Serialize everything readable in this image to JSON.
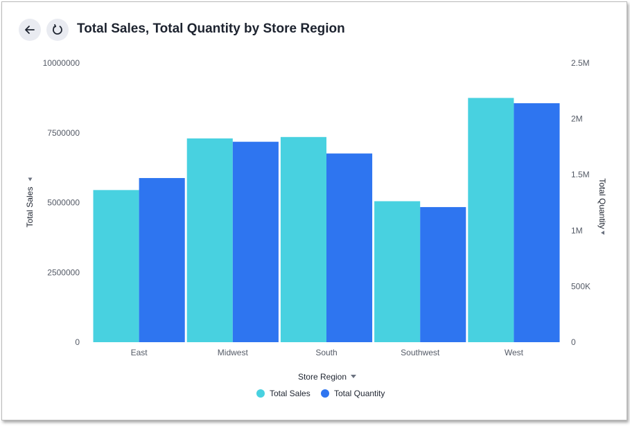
{
  "header": {
    "title": "Total Sales, Total Quantity by Store Region",
    "back_icon": "arrow-left-icon",
    "reset_icon": "refresh-icon"
  },
  "chart_data": {
    "type": "bar",
    "title": "Total Sales, Total Quantity by Store Region",
    "categories": [
      "East",
      "Midwest",
      "South",
      "Southwest",
      "West"
    ],
    "series": [
      {
        "name": "Total Sales",
        "axis": "left",
        "color": "#48d1e0",
        "values": [
          5450000,
          7300000,
          7350000,
          5050000,
          8750000
        ]
      },
      {
        "name": "Total Quantity",
        "axis": "right",
        "color": "#2e75f0",
        "values": [
          1470000,
          1795000,
          1690000,
          1210000,
          2140000
        ]
      }
    ],
    "xlabel": "Store Region",
    "ylabel": "Total Sales",
    "y2label": "Total Quantity",
    "ylim": [
      0,
      10000000
    ],
    "y2lim": [
      0,
      2500000
    ],
    "yticks": [
      0,
      2500000,
      5000000,
      7500000,
      10000000
    ],
    "ytick_labels": [
      "0",
      "2500000",
      "5000000",
      "7500000",
      "10000000"
    ],
    "y2ticks": [
      0,
      500000,
      1000000,
      1500000,
      2000000,
      2500000
    ],
    "y2tick_labels": [
      "0",
      "500K",
      "1M",
      "1.5M",
      "2M",
      "2.5M"
    ],
    "grid": false,
    "legend": "bottom"
  }
}
